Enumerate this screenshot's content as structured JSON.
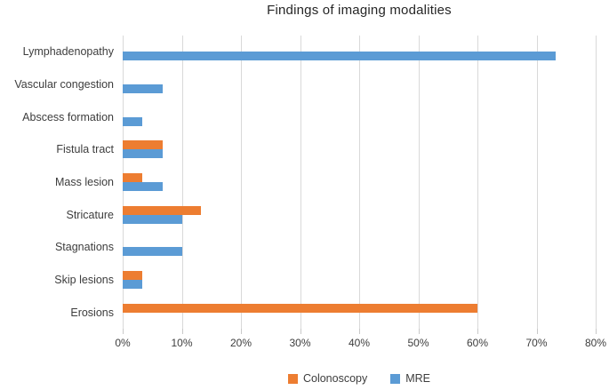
{
  "chart_data": {
    "type": "bar",
    "orientation": "horizontal",
    "title": "Findings of imaging modalities",
    "categories": [
      "Lymphadenopathy",
      "Vascular congestion",
      "Abscess formation",
      "Fistula tract",
      "Mass lesion",
      "Stricature",
      "Stagnations",
      "Skip lesions",
      "Erosions"
    ],
    "series": [
      {
        "name": "Colonoscopy",
        "color": "#ED7D31",
        "values": [
          0,
          0,
          0,
          6.7,
          3.3,
          13.3,
          0,
          3.3,
          60
        ]
      },
      {
        "name": "MRE",
        "color": "#5B9BD5",
        "values": [
          73.3,
          6.7,
          3.3,
          6.7,
          6.7,
          10,
          10,
          3.3,
          0
        ]
      }
    ],
    "x_axis": {
      "min": 0,
      "max": 80,
      "tick_step": 10,
      "tick_labels": [
        "0%",
        "10%",
        "20%",
        "30%",
        "40%",
        "50%",
        "60%",
        "70%",
        "80%"
      ]
    },
    "grid": "vertical-on",
    "legend_position": "bottom-center",
    "colors": {
      "gridline": "#d9d9d9",
      "tick": "#c9c9c9",
      "title_text": "#262626",
      "label_text": "#3d3d3d"
    }
  }
}
